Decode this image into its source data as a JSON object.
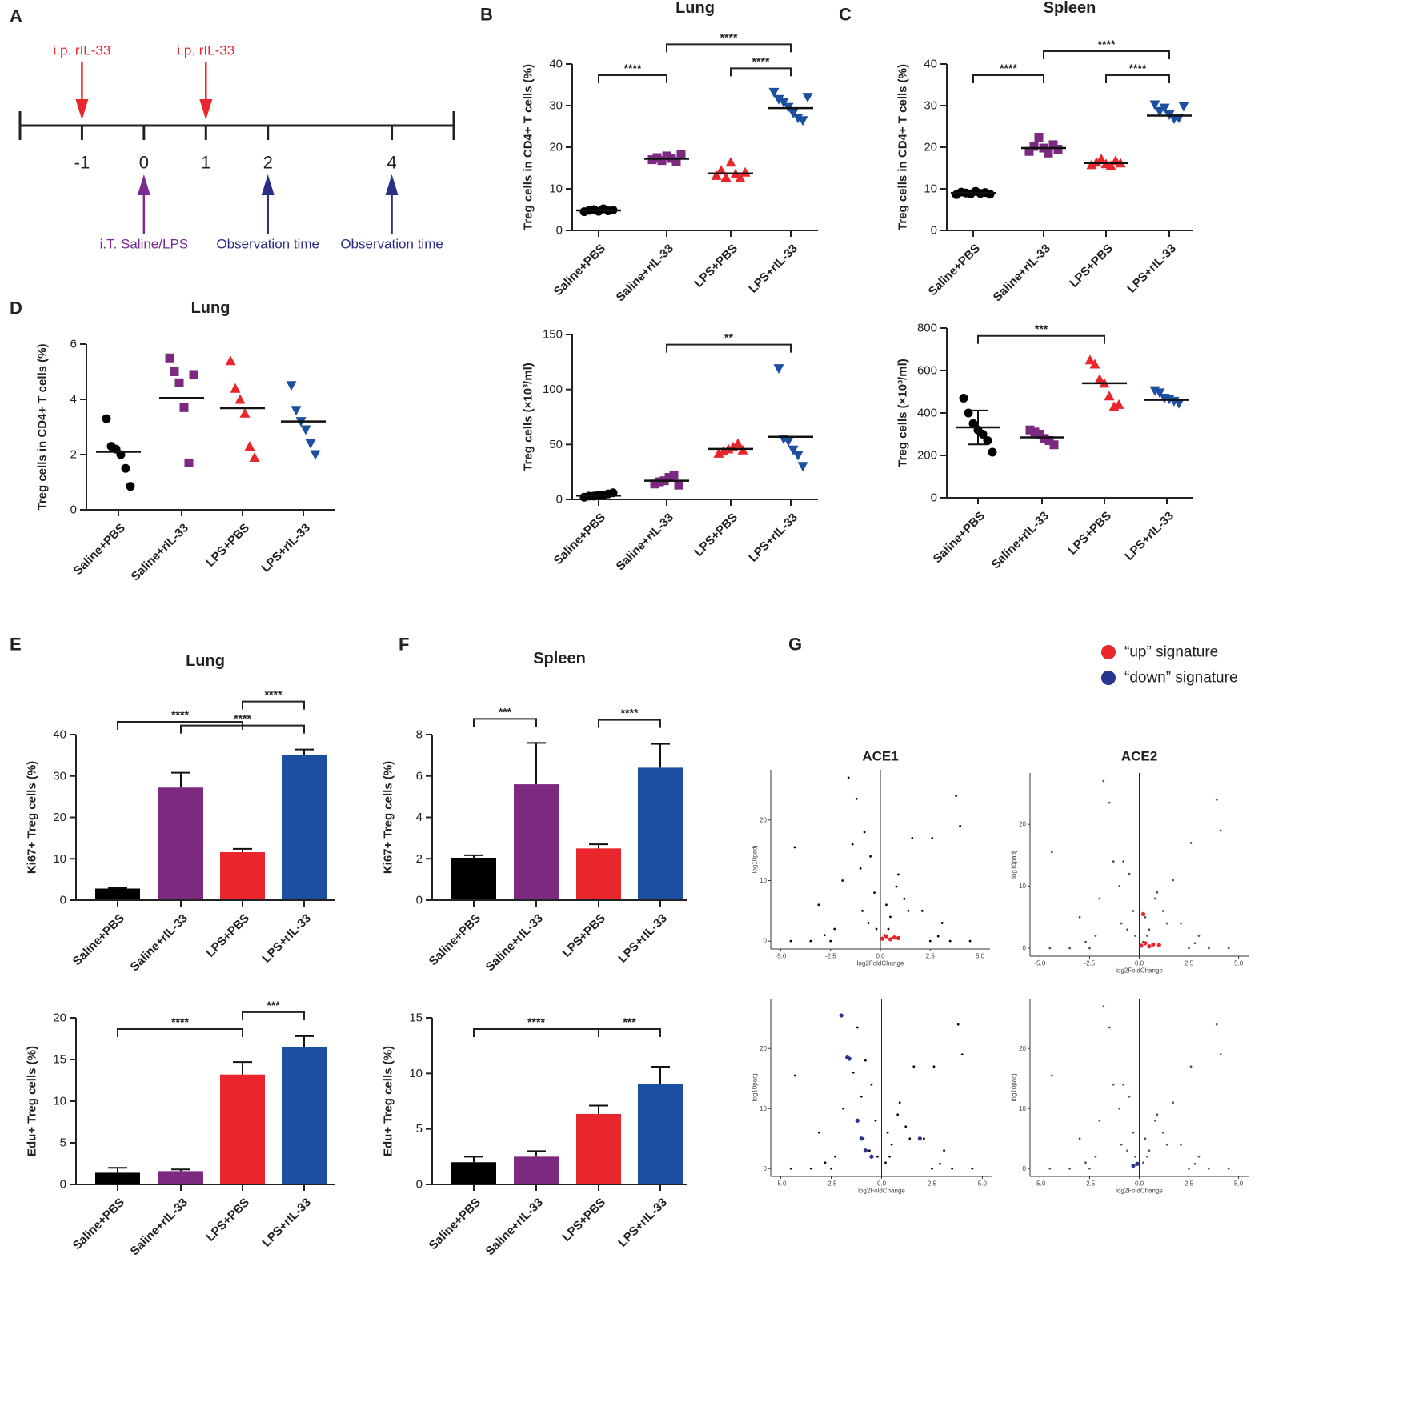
{
  "panel_labels": [
    "A",
    "B",
    "C",
    "D",
    "E",
    "F",
    "G"
  ],
  "timeline": {
    "xlim": [
      -2,
      5
    ],
    "xticks": [
      -1,
      0,
      1,
      2,
      4
    ],
    "top_events": [
      {
        "at": -1,
        "label": "i.p. rIL-33",
        "color": "#e8262b"
      },
      {
        "at": 1,
        "label": "i.p. rIL-33",
        "color": "#e8262b"
      }
    ],
    "bottom_events": [
      {
        "at": 0,
        "label": "i.T. Saline/LPS",
        "color": "#7b2a90"
      },
      {
        "at": 2,
        "label": "Observation time",
        "color": "#2a2e84"
      },
      {
        "at": 4,
        "label": "Observation time",
        "color": "#2a2e84"
      }
    ]
  },
  "legend": [
    {
      "name": "“up” signature",
      "color": "#e8262b"
    },
    {
      "name": "“down” signature",
      "color": "#2a3590"
    }
  ],
  "chart_data": [
    {
      "type": "dot",
      "title": "Lung",
      "ylabel": "Treg cells in CD4+ T cells (%)",
      "categories": [
        "Saline+PBS",
        "Saline+rIL-33",
        "LPS+PBS",
        "LPS+rIL-33"
      ],
      "colors": [
        "#000000",
        "#7b2a80",
        "#e8262b",
        "#1c4fa0"
      ],
      "markers": [
        "circle",
        "square",
        "triangle",
        "triangle-down"
      ],
      "points": [
        [
          4.5,
          4.8,
          5.0,
          4.6,
          5.2,
          4.7,
          4.9
        ],
        [
          17.0,
          17.5,
          16.8,
          17.9,
          17.3,
          16.6,
          18.2
        ],
        [
          13.2,
          14.5,
          12.8,
          16.4,
          13.6,
          12.6,
          14.0
        ],
        [
          33.2,
          31.5,
          30.8,
          29.6,
          28.2,
          27.0,
          26.4,
          32.0
        ]
      ],
      "means": [
        4.8,
        17.2,
        13.7,
        29.4
      ],
      "ylim": [
        0,
        40
      ],
      "yticks": [
        0,
        10,
        20,
        30,
        40
      ],
      "brackets": [
        {
          "from": 0,
          "to": 1,
          "label": "****"
        },
        {
          "from": 2,
          "to": 3,
          "label": "****"
        },
        {
          "from": 1,
          "to": 3,
          "label": "****"
        }
      ]
    },
    {
      "type": "dot",
      "title": "Spleen",
      "ylabel": "Treg cells in CD4+ T cells (%)",
      "categories": [
        "Saline+PBS",
        "Saline+rIL-33",
        "LPS+PBS",
        "LPS+rIL-33"
      ],
      "colors": [
        "#000000",
        "#7b2a80",
        "#e8262b",
        "#1c4fa0"
      ],
      "markers": [
        "circle",
        "square",
        "triangle",
        "triangle-down"
      ],
      "points": [
        [
          8.6,
          9.2,
          9.0,
          8.8,
          9.4,
          8.9,
          9.1,
          8.7
        ],
        [
          19.0,
          20.2,
          22.4,
          19.8,
          18.6,
          20.6,
          19.5
        ],
        [
          15.8,
          16.4,
          17.2,
          16.0,
          15.6,
          16.8,
          16.2
        ],
        [
          30.2,
          28.6,
          29.4,
          27.8,
          26.8,
          27.0,
          29.8
        ]
      ],
      "means": [
        9.0,
        19.8,
        16.2,
        27.6
      ],
      "ylim": [
        0,
        40
      ],
      "yticks": [
        0,
        10,
        20,
        30,
        40
      ],
      "brackets": [
        {
          "from": 0,
          "to": 1,
          "label": "****"
        },
        {
          "from": 2,
          "to": 3,
          "label": "****"
        },
        {
          "from": 1,
          "to": 3,
          "label": "****"
        }
      ]
    },
    {
      "type": "dot",
      "title": "Lung",
      "ylabel": "Treg cells in CD4+ T cells (%)",
      "categories": [
        "Saline+PBS",
        "Saline+rIL-33",
        "LPS+PBS",
        "LPS+rIL-33"
      ],
      "colors": [
        "#000000",
        "#7b2a80",
        "#e8262b",
        "#1c4fa0"
      ],
      "markers": [
        "circle",
        "square",
        "triangle",
        "triangle-down"
      ],
      "points": [
        [
          3.3,
          2.3,
          2.2,
          2.0,
          1.5,
          0.85
        ],
        [
          5.5,
          5.0,
          4.6,
          3.7,
          1.7,
          4.9
        ],
        [
          5.4,
          4.4,
          4.0,
          3.5,
          2.3,
          1.9
        ],
        [
          4.5,
          3.6,
          3.2,
          2.9,
          2.4,
          2.0
        ]
      ],
      "means": [
        2.1,
        4.05,
        3.68,
        3.2
      ],
      "ylim": [
        0,
        6
      ],
      "yticks": [
        0,
        2,
        4,
        6
      ]
    },
    {
      "type": "dot",
      "ylabel": "Treg cells (×10³/ml)",
      "categories": [
        "Saline+PBS",
        "Saline+rIL-33",
        "LPS+PBS",
        "LPS+rIL-33"
      ],
      "colors": [
        "#000000",
        "#7b2a80",
        "#e8262b",
        "#1c4fa0"
      ],
      "markers": [
        "circle",
        "square",
        "triangle",
        "triangle-down"
      ],
      "points": [
        [
          2,
          3,
          3,
          4,
          4,
          5,
          6
        ],
        [
          14,
          16,
          17,
          20,
          22,
          13
        ],
        [
          42,
          44,
          46,
          48,
          51,
          45
        ],
        [
          119,
          55,
          53,
          45,
          40,
          30
        ]
      ],
      "means": [
        3.5,
        17,
        46,
        57
      ],
      "ylim": [
        0,
        150
      ],
      "yticks": [
        0,
        50,
        100,
        150
      ],
      "brackets": [
        {
          "from": 1,
          "to": 3,
          "label": "**"
        }
      ]
    },
    {
      "type": "dot",
      "ylabel": "Treg cells (×10³/ml)",
      "categories": [
        "Saline+PBS",
        "Saline+rIL-33",
        "LPS+PBS",
        "LPS+rIL-33"
      ],
      "colors": [
        "#000000",
        "#7b2a80",
        "#e8262b",
        "#1c4fa0"
      ],
      "markers": [
        "circle",
        "square",
        "triangle",
        "triangle-down"
      ],
      "points": [
        [
          470,
          400,
          350,
          320,
          300,
          270,
          215
        ],
        [
          320,
          310,
          300,
          280,
          270,
          250
        ],
        [
          650,
          630,
          560,
          540,
          480,
          430,
          440
        ],
        [
          505,
          495,
          470,
          465,
          455,
          445
        ]
      ],
      "means": [
        332,
        285,
        540,
        462
      ],
      "errors": [
        80,
        null,
        null,
        null
      ],
      "ylim": [
        0,
        800
      ],
      "yticks": [
        0,
        200,
        400,
        600,
        800
      ],
      "brackets": [
        {
          "from": 0,
          "to": 2,
          "label": "***"
        }
      ]
    },
    {
      "type": "bar",
      "title": "Lung",
      "ylabel": "Ki67+ Treg cells (%)",
      "categories": [
        "Saline+PBS",
        "Saline+rIL-33",
        "LPS+PBS",
        "LPS+rIL-33"
      ],
      "colors": [
        "#000000",
        "#7b2a80",
        "#e8262b",
        "#1c4fa0"
      ],
      "values": [
        2.8,
        27.2,
        11.6,
        35.0
      ],
      "errors": [
        0.2,
        3.6,
        0.8,
        1.4
      ],
      "ylim": [
        0,
        40
      ],
      "yticks": [
        0,
        10,
        20,
        30,
        40
      ],
      "brackets": [
        {
          "from": 1,
          "to": 3,
          "label": "****"
        },
        {
          "from": 0,
          "to": 2,
          "label": "****"
        },
        {
          "from": 2,
          "to": 3,
          "label": "****"
        }
      ]
    },
    {
      "type": "bar",
      "ylabel": "Edu+ Treg cells (%)",
      "categories": [
        "Saline+PBS",
        "Saline+rIL-33",
        "LPS+PBS",
        "LPS+rIL-33"
      ],
      "colors": [
        "#000000",
        "#7b2a80",
        "#e8262b",
        "#1c4fa0"
      ],
      "values": [
        1.4,
        1.6,
        13.2,
        16.5
      ],
      "errors": [
        0.6,
        0.2,
        1.5,
        1.3
      ],
      "ylim": [
        0,
        20
      ],
      "yticks": [
        0,
        5,
        10,
        15,
        20
      ],
      "brackets": [
        {
          "from": 0,
          "to": 2,
          "label": "****"
        },
        {
          "from": 2,
          "to": 3,
          "label": "***"
        }
      ]
    },
    {
      "type": "bar",
      "title": "Spleen",
      "ylabel": "Ki67+ Treg cells (%)",
      "categories": [
        "Saline+PBS",
        "Saline+rIL-33",
        "LPS+PBS",
        "LPS+rIL-33"
      ],
      "colors": [
        "#000000",
        "#7b2a80",
        "#e8262b",
        "#1c4fa0"
      ],
      "values": [
        2.05,
        5.6,
        2.5,
        6.4
      ],
      "errors": [
        0.12,
        2.0,
        0.2,
        1.15
      ],
      "ylim": [
        0,
        8
      ],
      "yticks": [
        0,
        2,
        4,
        6,
        8
      ],
      "brackets": [
        {
          "from": 0,
          "to": 1,
          "label": "***"
        },
        {
          "from": 2,
          "to": 3,
          "label": "****"
        }
      ]
    },
    {
      "type": "bar",
      "ylabel": "Edu+ Treg cells (%)",
      "categories": [
        "Saline+PBS",
        "Saline+rIL-33",
        "LPS+PBS",
        "LPS+rIL-33"
      ],
      "colors": [
        "#000000",
        "#7b2a80",
        "#e8262b",
        "#1c4fa0"
      ],
      "values": [
        2.0,
        2.5,
        6.35,
        9.05
      ],
      "errors": [
        0.5,
        0.5,
        0.75,
        1.55
      ],
      "ylim": [
        0,
        15
      ],
      "yticks": [
        0,
        5,
        10,
        15
      ],
      "brackets": [
        {
          "from": 0,
          "to": 2,
          "label": "****"
        },
        {
          "from": 2,
          "to": 3,
          "label": "***"
        }
      ]
    },
    {
      "type": "volcano",
      "title": "ACE1",
      "xlabel": "log2FoldChange",
      "ylabel": "log10padj",
      "xlim": [
        -5.5,
        5.5
      ],
      "ylim": [
        -1.3,
        28.3
      ],
      "xticks": [
        {
          "value": -5,
          "label": "-5.0"
        },
        -2.5,
        {
          "value": 0,
          "label": "0.0"
        },
        2.5,
        {
          "value": 5,
          "label": "5.0"
        }
      ],
      "yticks": [
        0,
        10,
        20
      ],
      "points": {
        "color": "#000000",
        "x": [
          -1.6,
          -1.2,
          -0.8,
          -0.5,
          -0.3,
          -1.0,
          -1.9,
          -3.1,
          -4.3,
          -0.9,
          -0.6,
          -2.3,
          0.3,
          0.5,
          0.8,
          1.2,
          1.6,
          2.1,
          2.6,
          3.1,
          3.8,
          4.0,
          0.4,
          0.9,
          1.4,
          -0.2,
          0.2,
          -2.8,
          2.9,
          -1.4,
          -4.5,
          -3.5,
          -2.5,
          2.5,
          3.5,
          4.5
        ],
        "y": [
          27,
          23.5,
          18,
          14,
          8,
          12,
          10,
          6,
          15.5,
          5,
          3,
          2,
          6,
          4,
          9,
          7,
          17,
          5,
          17,
          3,
          24,
          19,
          2,
          11,
          5,
          2,
          1,
          1,
          0.8,
          16,
          0,
          0,
          0,
          0,
          0,
          0
        ]
      },
      "highlight": {
        "color": "#e8262b",
        "x": [
          0.1,
          0.3,
          0.5,
          0.7,
          0.9
        ],
        "y": [
          0.4,
          0.8,
          0.3,
          0.6,
          0.5
        ]
      }
    },
    {
      "type": "volcano",
      "title": "ACE2",
      "xlabel": "log2FoldChange",
      "ylabel": "log10padj",
      "xlim": [
        -5.5,
        5.5
      ],
      "ylim": [
        -1.3,
        28.3
      ],
      "xticks": [
        {
          "value": -5,
          "label": "-5.0"
        },
        -2.5,
        {
          "value": 0,
          "label": "0.0"
        },
        2.5,
        {
          "value": 5,
          "label": "5.0"
        }
      ],
      "yticks": [
        0,
        10,
        20
      ],
      "points": {
        "color": "#555555",
        "x": [
          -1.8,
          -1.5,
          -0.8,
          -0.5,
          -0.3,
          -1.0,
          -2.0,
          -3.0,
          -4.4,
          -0.9,
          -0.6,
          -2.2,
          0.3,
          0.5,
          0.8,
          1.2,
          1.7,
          2.1,
          2.6,
          3.0,
          3.9,
          4.1,
          0.4,
          0.9,
          1.4,
          -0.2,
          0.2,
          -2.7,
          2.8,
          -1.3,
          -4.5,
          -3.5,
          -2.5,
          2.5,
          3.5,
          4.5
        ],
        "y": [
          27,
          23.5,
          14,
          12,
          6,
          10,
          8,
          5,
          15.5,
          4,
          3,
          2,
          5,
          3,
          8,
          6,
          11,
          4,
          17,
          2,
          24,
          19,
          2,
          9,
          4,
          2,
          1,
          1,
          0.8,
          14,
          0,
          0,
          0,
          0,
          0,
          0
        ]
      },
      "highlight": {
        "color": "#e8262b",
        "x": [
          0.1,
          0.3,
          0.5,
          0.7,
          1.0,
          0.2
        ],
        "y": [
          0.4,
          0.8,
          0.3,
          0.6,
          0.5,
          5.5
        ]
      }
    },
    {
      "type": "volcano",
      "xlabel": "log2FoldChange",
      "ylabel": "log10padj",
      "xlim": [
        -5.5,
        5.5
      ],
      "ylim": [
        -1.3,
        28.3
      ],
      "xticks": [
        {
          "value": -5,
          "label": "-5.0"
        },
        -2.5,
        {
          "value": 0,
          "label": "0.0"
        },
        2.5,
        {
          "value": 5,
          "label": "5.0"
        }
      ],
      "yticks": [
        0,
        10,
        20
      ],
      "points": {
        "color": "#000000",
        "x": [
          -1.2,
          -0.8,
          -0.5,
          -0.3,
          -1.0,
          -1.9,
          -3.1,
          -4.3,
          -0.9,
          -0.6,
          -2.3,
          0.3,
          0.5,
          0.8,
          1.2,
          1.6,
          2.1,
          2.6,
          3.1,
          3.8,
          4.0,
          0.4,
          0.9,
          1.4,
          -0.2,
          0.2,
          -2.8,
          2.9,
          -1.4,
          -4.5,
          -3.5,
          -2.5,
          2.5,
          3.5,
          4.5
        ],
        "y": [
          23.5,
          18,
          14,
          8,
          12,
          10,
          6,
          15.5,
          5,
          3,
          2,
          6,
          4,
          9,
          7,
          17,
          5,
          17,
          3,
          24,
          19,
          2,
          11,
          5,
          2,
          1,
          1,
          0.8,
          16,
          0,
          0,
          0,
          0,
          0,
          0
        ]
      },
      "highlight": {
        "color": "#2a3590",
        "x": [
          -2.0,
          -1.7,
          -1.6,
          -1.2,
          -1.0,
          -0.8,
          -0.5,
          1.9
        ],
        "y": [
          25.5,
          18.5,
          18.3,
          8,
          5,
          3,
          2,
          5
        ]
      }
    },
    {
      "type": "volcano",
      "xlabel": "log2FoldChange",
      "ylabel": "log10padj",
      "xlim": [
        -5.5,
        5.5
      ],
      "ylim": [
        -1.3,
        28.3
      ],
      "xticks": [
        {
          "value": -5,
          "label": "-5.0"
        },
        -2.5,
        {
          "value": 0,
          "label": "0.0"
        },
        2.5,
        {
          "value": 5,
          "label": "5.0"
        }
      ],
      "yticks": [
        0,
        10,
        20
      ],
      "points": {
        "color": "#555555",
        "x": [
          -1.8,
          -1.5,
          -0.8,
          -0.5,
          -0.3,
          -1.0,
          -2.0,
          -3.0,
          -4.4,
          -0.9,
          -0.6,
          -2.2,
          0.3,
          0.5,
          0.8,
          1.2,
          1.7,
          2.1,
          2.6,
          3.0,
          3.9,
          4.1,
          0.4,
          0.9,
          1.4,
          -0.2,
          0.2,
          -2.7,
          2.8,
          -1.3,
          -4.5,
          -3.5,
          -2.5,
          2.5,
          3.5,
          4.5
        ],
        "y": [
          27,
          23.5,
          14,
          12,
          6,
          10,
          8,
          5,
          15.5,
          4,
          3,
          2,
          5,
          3,
          8,
          6,
          11,
          4,
          17,
          2,
          24,
          19,
          2,
          9,
          4,
          2,
          1,
          1,
          0.8,
          14,
          0,
          0,
          0,
          0,
          0,
          0
        ]
      },
      "highlight": {
        "color": "#2a3590",
        "x": [
          -0.3,
          -0.1
        ],
        "y": [
          0.5,
          0.8
        ]
      }
    }
  ]
}
